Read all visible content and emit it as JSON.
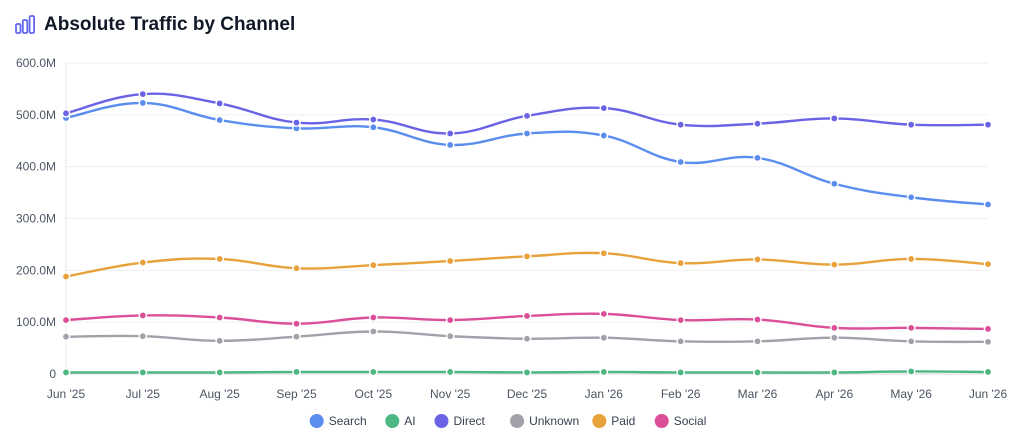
{
  "header": {
    "title": "Absolute Traffic by Channel",
    "icon": "bar-chart-icon",
    "accent_color": "#6366f1"
  },
  "chart_data": {
    "type": "line",
    "title": "Absolute Traffic by Channel",
    "categories": [
      "Jun '25",
      "Jul '25",
      "Aug '25",
      "Sep '25",
      "Oct '25",
      "Nov '25",
      "Dec '25",
      "Jan '26",
      "Feb '26",
      "Mar '26",
      "Apr '26",
      "May '26",
      "Jun '26"
    ],
    "y_ticks": [
      "0",
      "100.0M",
      "200.0M",
      "300.0M",
      "400.0M",
      "500.0M",
      "600.0M"
    ],
    "ylim": [
      0,
      600000000
    ],
    "grid": true,
    "legend_position": "bottom",
    "series": [
      {
        "name": "Search",
        "color": "#5b8def",
        "values": [
          494,
          523,
          490,
          474,
          476,
          442,
          464,
          460,
          409,
          417,
          367,
          341,
          327
        ]
      },
      {
        "name": "AI",
        "color": "#4cb782",
        "values": [
          3,
          3,
          3,
          4,
          4,
          4,
          3,
          4,
          3,
          3,
          3,
          5,
          4
        ]
      },
      {
        "name": "Direct",
        "color": "#6b63e6",
        "values": [
          503,
          540,
          522,
          485,
          491,
          464,
          498,
          513,
          481,
          483,
          493,
          481,
          481
        ]
      },
      {
        "name": "Unknown",
        "color": "#a1a1aa",
        "values": [
          72,
          73,
          64,
          72,
          82,
          73,
          68,
          70,
          63,
          63,
          70,
          63,
          62
        ]
      },
      {
        "name": "Paid",
        "color": "#e8a23b",
        "values": [
          188,
          215,
          222,
          204,
          210,
          218,
          227,
          233,
          214,
          221,
          211,
          222,
          212
        ]
      },
      {
        "name": "Social",
        "color": "#db4f98",
        "values": [
          104,
          113,
          109,
          97,
          109,
          104,
          112,
          116,
          104,
          105,
          89,
          89,
          87
        ]
      }
    ],
    "value_unit_multiplier": 1000000
  }
}
